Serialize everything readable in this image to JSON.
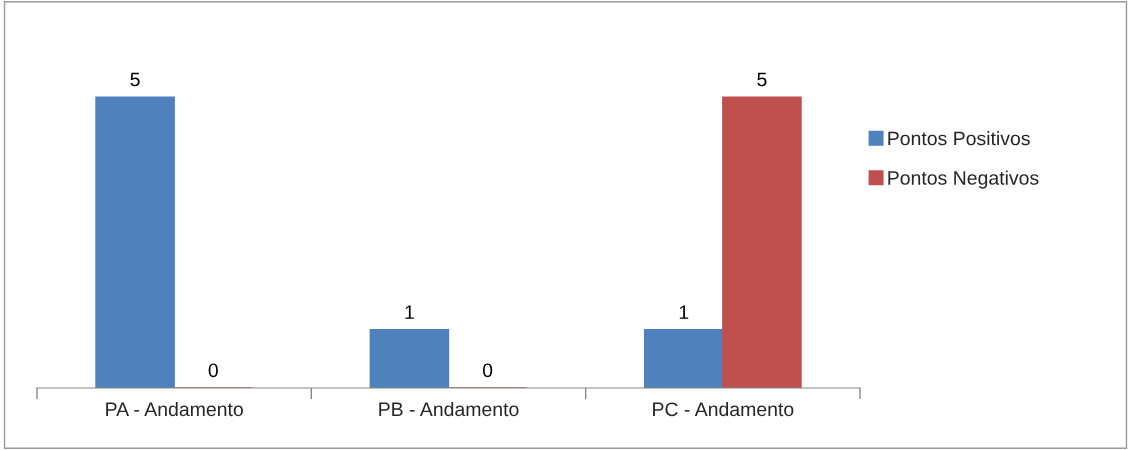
{
  "chart_data": {
    "type": "bar",
    "categories": [
      "PA - Andamento",
      "PB - Andamento",
      "PC - Andamento"
    ],
    "series": [
      {
        "name": "Pontos Positivos",
        "color": "#4f81bd",
        "values": [
          5,
          1,
          1
        ]
      },
      {
        "name": "Pontos Negativos",
        "color": "#c0504d",
        "values": [
          0,
          0,
          5
        ]
      }
    ],
    "data_labels": true,
    "legend": "right",
    "grid": false
  }
}
